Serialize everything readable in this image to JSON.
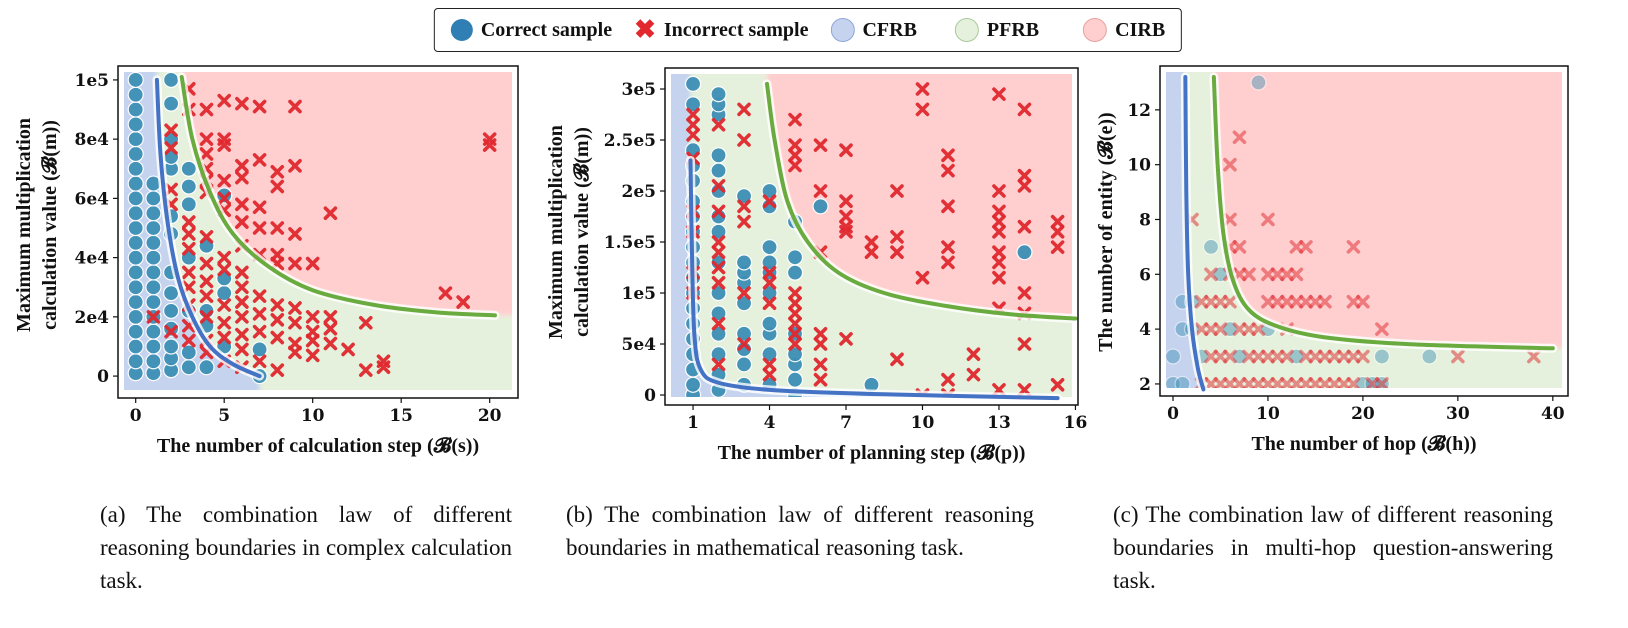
{
  "legend": {
    "correct": "Correct sample",
    "incorrect": "Incorrect sample",
    "cfrb": "CFRB",
    "pfrb": "PFRB",
    "cirb": "CIRB"
  },
  "colors": {
    "correct": "#3d8fb5",
    "incorrect": "#e0282e",
    "cfrb": "#c5d3ee",
    "pfrb": "#e5f1dc",
    "cirb": "#ffcfcf",
    "cfrb_line": "#4472c4",
    "pfrb_line": "#6aab40"
  },
  "chart_data": [
    {
      "type": "scatter",
      "xlabel": "The number of calculation step (𝓑(s))",
      "ylabel_lines": [
        "Maximum multiplication",
        "calculation value (𝓑(m))"
      ],
      "xlim": [
        -1,
        21.6
      ],
      "ylim": [
        -7400,
        104700
      ],
      "xticks": [
        0,
        5,
        10,
        15,
        20
      ],
      "xtick_labels": [
        "0",
        "5",
        "10",
        "15",
        "20"
      ],
      "yticks": [
        0,
        20000,
        40000,
        60000,
        80000,
        100000
      ],
      "ytick_labels": [
        "0",
        "2e4",
        "4e4",
        "6e4",
        "8e4",
        "1e5"
      ],
      "cfrb_curve": [
        [
          1.2,
          100000
        ],
        [
          1.4,
          75000
        ],
        [
          1.8,
          52000
        ],
        [
          2.4,
          33000
        ],
        [
          3.2,
          20000
        ],
        [
          4.2,
          10000
        ],
        [
          5.5,
          4000
        ],
        [
          7,
          0
        ]
      ],
      "pfrb_curve": [
        [
          2.6,
          101000
        ],
        [
          3.2,
          80000
        ],
        [
          4.2,
          62000
        ],
        [
          5.5,
          48000
        ],
        [
          7.5,
          37000
        ],
        [
          10,
          29000
        ],
        [
          13.5,
          24000
        ],
        [
          17,
          21500
        ],
        [
          20.3,
          20500
        ]
      ],
      "columns": [
        {
          "x": 0,
          "correct": [
            1000,
            5000,
            10000,
            15000,
            20000,
            25000,
            30000,
            35000,
            40000,
            45000,
            50000,
            55000,
            60000,
            65000,
            70000,
            75000,
            80000,
            85000,
            90000,
            95000,
            100000
          ],
          "incorrect": []
        },
        {
          "x": 1,
          "correct": [
            1000,
            5000,
            10000,
            15000,
            20000,
            25000,
            30000,
            35000,
            40000,
            45000,
            50000,
            55000,
            60000,
            65000
          ],
          "incorrect": [
            20000
          ]
        },
        {
          "x": 2,
          "correct": [
            2000,
            6000,
            10000,
            16000,
            22000,
            28000,
            35000,
            48000,
            54000,
            70000,
            74000,
            80000,
            92000,
            100000
          ],
          "incorrect": [
            15000,
            58000,
            63000,
            77000,
            83000
          ]
        },
        {
          "x": 3,
          "correct": [
            3000,
            8000,
            22000,
            40000,
            58000,
            64000,
            70000
          ],
          "incorrect": [
            12000,
            17000,
            24000,
            30000,
            35000,
            43000,
            48000,
            52000,
            90000,
            97000
          ]
        },
        {
          "x": 4,
          "correct": [
            3000,
            17000,
            22000,
            44000
          ],
          "incorrect": [
            8000,
            12000,
            20000,
            27000,
            32000,
            38000,
            47000,
            62000,
            66000,
            70000,
            75000,
            80000,
            90000
          ]
        },
        {
          "x": 5,
          "correct": [
            10000,
            28000,
            33000,
            61000
          ],
          "incorrect": [
            5000,
            13000,
            18000,
            24000,
            36000,
            40000,
            56000,
            60000,
            66000,
            78000,
            80000,
            93000
          ]
        },
        {
          "x": 6,
          "correct": [],
          "incorrect": [
            3000,
            9000,
            14000,
            20000,
            25000,
            30000,
            35000,
            44000,
            52000,
            58000,
            67000,
            71000,
            92000
          ]
        },
        {
          "x": 7,
          "correct": [
            0,
            9000
          ],
          "incorrect": [
            5000,
            15000,
            21000,
            27000,
            41000,
            50000,
            57000,
            73000,
            91000
          ]
        },
        {
          "x": 8,
          "correct": [],
          "incorrect": [
            2000,
            13000,
            19000,
            24000,
            38000,
            41000,
            50000,
            64000,
            69000
          ]
        },
        {
          "x": 9,
          "correct": [],
          "incorrect": [
            8000,
            11000,
            18000,
            23000,
            38000,
            48000,
            71000,
            91000
          ]
        },
        {
          "x": 10,
          "correct": [],
          "incorrect": [
            7000,
            12000,
            15000,
            20000,
            38000
          ]
        },
        {
          "x": 11,
          "correct": [],
          "incorrect": [
            11000,
            16000,
            20000,
            55000
          ]
        },
        {
          "x": 12,
          "correct": [],
          "incorrect": [
            9000
          ]
        },
        {
          "x": 13,
          "correct": [],
          "incorrect": [
            2000,
            18000
          ]
        },
        {
          "x": 14,
          "correct": [],
          "incorrect": [
            3000,
            5000
          ]
        },
        {
          "x": 17.5,
          "correct": [],
          "incorrect": [
            28000
          ]
        },
        {
          "x": 18.5,
          "correct": [],
          "incorrect": [
            25000
          ]
        },
        {
          "x": 20,
          "correct": [],
          "incorrect": [
            78000,
            80000
          ]
        }
      ],
      "caption": "(a) The combination law of different reasoning boundaries in complex calculation task."
    },
    {
      "type": "scatter",
      "xlabel": "The number of planning step (𝓑(p))",
      "ylabel_lines": [
        "Maximum multiplication",
        "calculation value (𝓑(m))"
      ],
      "xlim": [
        -0.1,
        16.1
      ],
      "ylim": [
        -9800,
        320600
      ],
      "xticks": [
        1,
        4,
        7,
        10,
        13,
        16
      ],
      "xtick_labels": [
        "1",
        "4",
        "7",
        "10",
        "13",
        "16"
      ],
      "yticks": [
        0,
        50000,
        100000,
        150000,
        200000,
        250000,
        300000
      ],
      "ytick_labels": [
        "0",
        "5e4",
        "1e5",
        "1.5e5",
        "2e5",
        "2.5e5",
        "3e5"
      ],
      "cfrb_curve": [
        [
          0.9,
          230000
        ],
        [
          0.95,
          150000
        ],
        [
          1.05,
          60000
        ],
        [
          1.3,
          25000
        ],
        [
          2,
          12000
        ],
        [
          4,
          5000
        ],
        [
          8,
          1000
        ],
        [
          15.3,
          -3000
        ]
      ],
      "pfrb_curve": [
        [
          3.9,
          305000
        ],
        [
          4.2,
          250000
        ],
        [
          4.7,
          190000
        ],
        [
          5.5,
          150000
        ],
        [
          6.7,
          120000
        ],
        [
          8.5,
          100000
        ],
        [
          11,
          87000
        ],
        [
          13.5,
          79000
        ],
        [
          16,
          75000
        ]
      ],
      "columns": [
        {
          "x": 1,
          "correct": [
            0,
            10000,
            25000,
            40000,
            55000,
            70000,
            85000,
            100000,
            115000,
            130000,
            145000,
            160000,
            175000,
            190000,
            210000,
            225000,
            240000,
            285000,
            305000
          ],
          "incorrect": [
            100000,
            120000,
            160000,
            180000,
            232000,
            255000,
            265000,
            275000
          ]
        },
        {
          "x": 2,
          "correct": [
            5000,
            20000,
            40000,
            60000,
            80000,
            100000,
            130000,
            160000,
            175000,
            200000,
            220000,
            235000,
            275000,
            285000,
            295000
          ],
          "incorrect": [
            30000,
            70000,
            110000,
            125000,
            140000,
            150000,
            180000,
            205000,
            265000
          ]
        },
        {
          "x": 3,
          "correct": [
            10000,
            30000,
            45000,
            60000,
            90000,
            110000,
            120000,
            130000,
            195000
          ],
          "incorrect": [
            50000,
            100000,
            170000,
            185000,
            250000,
            280000
          ]
        },
        {
          "x": 4,
          "correct": [
            10000,
            40000,
            60000,
            70000,
            100000,
            120000,
            130000,
            145000,
            185000,
            200000
          ],
          "incorrect": [
            20000,
            30000,
            90000,
            110000,
            120000,
            190000
          ]
        },
        {
          "x": 5,
          "correct": [
            0,
            15000,
            30000,
            40000,
            60000,
            120000,
            135000,
            170000
          ],
          "incorrect": [
            50000,
            60000,
            70000,
            80000,
            90000,
            100000,
            225000,
            235000,
            245000,
            270000
          ]
        },
        {
          "x": 6,
          "correct": [
            185000
          ],
          "incorrect": [
            15000,
            30000,
            50000,
            60000,
            140000,
            200000,
            245000
          ]
        },
        {
          "x": 7,
          "correct": [],
          "incorrect": [
            55000,
            160000,
            165000,
            175000,
            190000,
            240000
          ]
        },
        {
          "x": 8,
          "correct": [
            10000
          ],
          "incorrect": [
            140000,
            150000
          ]
        },
        {
          "x": 9,
          "correct": [],
          "incorrect": [
            35000,
            140000,
            155000,
            200000
          ]
        },
        {
          "x": 10,
          "correct": [],
          "incorrect": [
            0,
            115000,
            280000,
            300000
          ]
        },
        {
          "x": 11,
          "correct": [],
          "incorrect": [
            0,
            15000,
            130000,
            145000,
            185000,
            220000,
            235000
          ]
        },
        {
          "x": 12,
          "correct": [],
          "incorrect": [
            20000,
            40000
          ]
        },
        {
          "x": 13,
          "correct": [],
          "incorrect": [
            5000,
            85000,
            115000,
            130000,
            140000,
            160000,
            170000,
            180000,
            200000,
            295000
          ]
        },
        {
          "x": 14,
          "correct": [
            140000
          ],
          "incorrect": [
            5000,
            50000,
            80000,
            100000,
            165000,
            205000,
            215000,
            280000
          ]
        },
        {
          "x": 15.3,
          "correct": [],
          "incorrect": [
            10000,
            145000,
            160000,
            170000
          ]
        }
      ],
      "caption": "(b) The combination law of different reasoning boundaries in mathematical reasoning task."
    },
    {
      "type": "scatter",
      "xlabel": "The number of hop (𝓑(h))",
      "ylabel_lines": [
        "The number of entity (𝓑(e))"
      ],
      "xlim": [
        -1.37,
        41.6
      ],
      "ylim": [
        1.56,
        13.6
      ],
      "xticks": [
        0,
        10,
        20,
        30,
        40
      ],
      "xtick_labels": [
        "0",
        "10",
        "20",
        "30",
        "40"
      ],
      "yticks": [
        2,
        4,
        6,
        8,
        10,
        12
      ],
      "ytick_labels": [
        "2",
        "4",
        "6",
        "8",
        "10",
        "12"
      ],
      "cfrb_curve": [
        [
          1.3,
          13.2
        ],
        [
          1.4,
          9
        ],
        [
          1.6,
          6
        ],
        [
          2,
          4
        ],
        [
          2.6,
          2.6
        ],
        [
          3.2,
          1.8
        ]
      ],
      "pfrb_curve": [
        [
          4.3,
          13.2
        ],
        [
          4.7,
          10
        ],
        [
          5.3,
          7.5
        ],
        [
          6.3,
          5.8
        ],
        [
          8,
          4.7
        ],
        [
          11,
          4.1
        ],
        [
          16,
          3.7
        ],
        [
          25,
          3.45
        ],
        [
          40,
          3.3
        ]
      ],
      "rows": [
        {
          "y": 2,
          "correct": [
            0,
            1,
            20,
            21,
            22
          ],
          "incorrect": [
            3,
            4,
            5,
            6,
            7,
            8,
            9,
            10,
            11,
            12,
            13,
            14,
            15,
            16,
            17,
            18,
            19,
            21,
            22
          ]
        },
        {
          "y": 3,
          "correct": [
            0,
            3,
            7,
            13,
            22,
            27
          ],
          "incorrect": [
            4,
            5,
            6,
            8,
            9,
            10,
            11,
            12,
            14,
            15,
            16,
            17,
            18,
            19,
            20,
            30,
            38
          ]
        },
        {
          "y": 4,
          "correct": [
            1,
            2,
            6,
            10
          ],
          "incorrect": [
            3,
            4,
            5,
            7,
            8,
            9,
            12,
            22
          ]
        },
        {
          "y": 5,
          "correct": [
            1,
            2
          ],
          "incorrect": [
            3,
            4,
            5,
            6,
            10,
            11,
            12,
            13,
            14,
            15,
            16,
            19,
            20
          ]
        },
        {
          "y": 6,
          "correct": [
            5
          ],
          "incorrect": [
            4,
            6,
            7,
            8,
            10,
            11,
            12,
            13
          ]
        },
        {
          "y": 7,
          "correct": [
            4
          ],
          "incorrect": [
            6,
            7,
            13,
            14,
            19
          ]
        },
        {
          "y": 8,
          "correct": [],
          "incorrect": [
            2,
            6,
            10
          ]
        },
        {
          "y": 10,
          "correct": [],
          "incorrect": [
            6
          ]
        },
        {
          "y": 11,
          "correct": [],
          "incorrect": [
            7
          ]
        },
        {
          "y": 13,
          "correct": [
            9
          ],
          "incorrect": []
        }
      ],
      "caption": "(c) The combination law of different reasoning boundaries in multi-hop question-answering task."
    }
  ]
}
